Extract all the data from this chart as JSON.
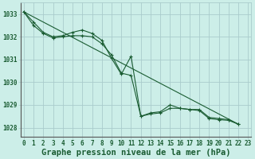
{
  "title": "Graphe pression niveau de la mer (hPa)",
  "bg_color": "#cceee8",
  "grid_color": "#aacccc",
  "line_color": "#1a5c32",
  "x_ticks": [
    0,
    1,
    2,
    3,
    4,
    5,
    6,
    7,
    8,
    9,
    10,
    11,
    12,
    13,
    14,
    15,
    16,
    17,
    18,
    19,
    20,
    21,
    22,
    23
  ],
  "y_ticks": [
    1028,
    1029,
    1030,
    1031,
    1032,
    1033
  ],
  "ylim": [
    1027.6,
    1033.5
  ],
  "xlim": [
    -0.3,
    23.3
  ],
  "series1": [
    1033.1,
    1032.65,
    1032.2,
    1032.0,
    1032.05,
    1032.2,
    1032.3,
    1032.15,
    1031.85,
    1031.05,
    1030.35,
    1031.15,
    1028.5,
    1028.65,
    1028.7,
    1029.0,
    1028.85,
    1028.8,
    1028.8,
    1028.45,
    1028.4,
    1028.35,
    1028.15
  ],
  "series2": [
    1033.1,
    1032.5,
    1032.15,
    1031.95,
    1032.0,
    1032.05,
    1032.05,
    1032.0,
    1031.7,
    1031.2,
    1030.4,
    1030.3,
    1028.5,
    1028.6,
    1028.65,
    1028.85,
    1028.85,
    1028.8,
    1028.75,
    1028.4,
    1028.35,
    1028.32,
    1028.15
  ],
  "trend_x": [
    0,
    22
  ],
  "trend_y": [
    1033.1,
    1028.15
  ],
  "tick_fontsize": 5.5,
  "label_fontsize": 7.5,
  "font_color": "#1a5c32"
}
